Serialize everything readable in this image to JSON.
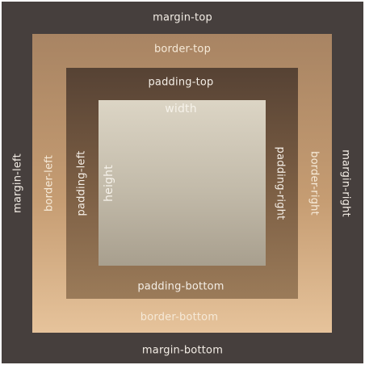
{
  "labels": {
    "margin_top": "margin-top",
    "margin_bottom": "margin-bottom",
    "margin_left": "margin-left",
    "margin_right": "margin-right",
    "border_top": "border-top",
    "border_bottom": "border-bottom",
    "border_left": "border-left",
    "border_right": "border-right",
    "padding_top": "padding-top",
    "padding_bottom": "padding-bottom",
    "padding_left": "padding-left",
    "padding_right": "padding-right",
    "width": "width",
    "height": "height"
  },
  "colors": {
    "margin": "#463f3d",
    "border": "#c59c72",
    "padding": "#7a5d43",
    "content": "#c2baa9",
    "label_light": "#f4eee6",
    "label_border": "#f6ead8"
  }
}
